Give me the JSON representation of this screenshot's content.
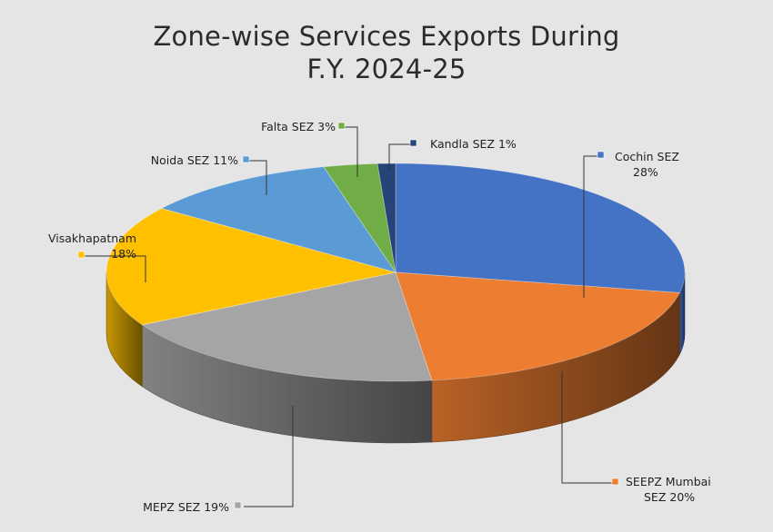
{
  "chart_data": {
    "type": "pie",
    "style": "3d",
    "title": [
      "Zone-wise Services Exports During",
      "F.Y. 2024-25"
    ],
    "slices": [
      {
        "name": "Cochin SEZ",
        "value": 28,
        "label_lines": [
          "Cochin SEZ",
          "28%"
        ],
        "color": "#4472c4"
      },
      {
        "name": "SEEPZ Mumbai SEZ",
        "value": 20,
        "label_lines": [
          "SEEPZ Mumbai",
          "SEZ 20%"
        ],
        "color": "#ed7d31"
      },
      {
        "name": "MEPZ SEZ",
        "value": 19,
        "label_lines": [
          "MEPZ SEZ 19%"
        ],
        "color": "#a5a5a5"
      },
      {
        "name": "Visakhapatnam",
        "value": 18,
        "label_lines": [
          "Visakhapatnam",
          "18%"
        ],
        "color": "#ffc000"
      },
      {
        "name": "Noida SEZ",
        "value": 11,
        "label_lines": [
          "Noida SEZ 11%"
        ],
        "color": "#5b9bd5"
      },
      {
        "name": "Falta SEZ",
        "value": 3,
        "label_lines": [
          "Falta SEZ 3%"
        ],
        "color": "#70ad47"
      },
      {
        "name": "Kandla SEZ",
        "value": 1,
        "label_lines": [
          "Kandla SEZ 1%"
        ],
        "color": "#264478"
      }
    ]
  }
}
